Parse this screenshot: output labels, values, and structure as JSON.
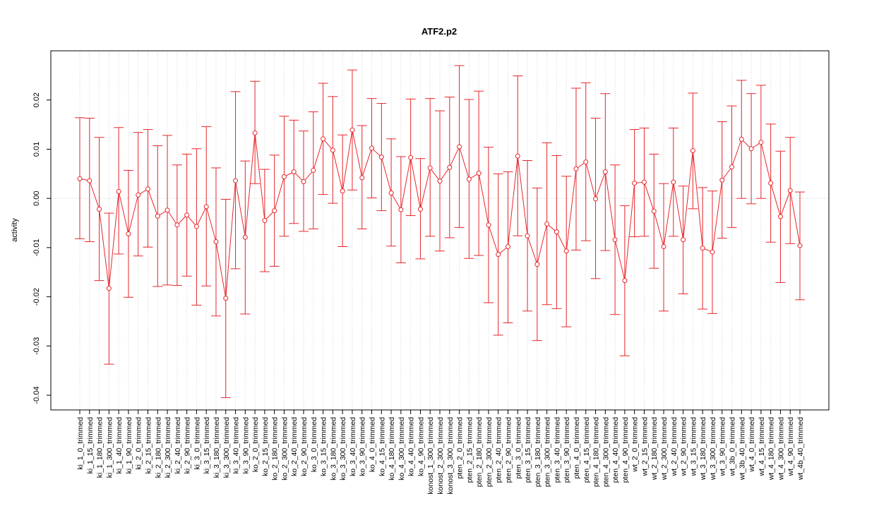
{
  "chart_data": {
    "type": "line",
    "title": "ATF2.p2",
    "xlabel": "",
    "ylabel": "activity",
    "ylim": [
      -0.043,
      0.03
    ],
    "yticks": [
      -0.04,
      -0.03,
      -0.02,
      -0.01,
      0.0,
      0.01,
      0.02
    ],
    "ytick_labels": [
      "-0.04",
      "-0.03",
      "-0.02",
      "-0.01",
      "0.00",
      "0.01",
      "0.02"
    ],
    "grid": true,
    "reference_line": 0,
    "colors": {
      "series": "#e8262b",
      "grid": "#d3d3d3",
      "axis": "#000000"
    },
    "categories": [
      "ki_1_0_trimmed",
      "ki_1_15_trimmed",
      "ki_1_180_trimmed",
      "ki_1_300_trimmed",
      "ki_1_40_trimmed",
      "ki_1_90_trimmed",
      "ki_2_0_trimmed",
      "ki_2_15_trimmed",
      "ki_2_180_trimmed",
      "ki_2_300_trimmed",
      "ki_2_40_trimmed",
      "ki_2_90_trimmed",
      "ki_3_0_trimmed",
      "ki_3_15_trimmed",
      "ki_3_180_trimmed",
      "ki_3_300_trimmed",
      "ki_3_40_trimmed",
      "ki_3_90_trimmed",
      "ko_2_0_trimmed",
      "ko_2_15_trimmed",
      "ko_2_180_trimmed",
      "ko_2_300_trimmed",
      "ko_2_40_trimmed",
      "ko_2_90_trimmed",
      "ko_3_0_trimmed",
      "ko_3_15_trimmed",
      "ko_3_180_trimmed",
      "ko_3_300_trimmed",
      "ko_3_40_trimmed",
      "ko_3_90_trimmed",
      "ko_4_0_trimmed",
      "ko_4_15_trimmed",
      "ko_4_180_trimmed",
      "ko_4_300_trimmed",
      "ko_4_40_trimmed",
      "ko_4_90_trimmed",
      "konost_1_300_trimmed",
      "konost_2_300_trimmed",
      "konost_3_300_trimmed",
      "pten_2_0_trimmed",
      "pten_2_15_trimmed",
      "pten_2_180_trimmed",
      "pten_2_300_trimmed",
      "pten_2_40_trimmed",
      "pten_2_90_trimmed",
      "pten_3_0_trimmed",
      "pten_3_15_trimmed",
      "pten_3_180_trimmed",
      "pten_3_300_trimmed",
      "pten_3_40_trimmed",
      "pten_3_90_trimmed",
      "pten_4_0_trimmed",
      "pten_4_15_trimmed",
      "pten_4_180_trimmed",
      "pten_4_300_trimmed",
      "pten_4_40_trimmed",
      "pten_4_90_trimmed",
      "wt_2_0_trimmed",
      "wt_2_15_trimmed",
      "wt_2_180_trimmed",
      "wt_2_300_trimmed",
      "wt_2_40_trimmed",
      "wt_2_90_trimmed",
      "wt_3_15_trimmed",
      "wt_3_180_trimmed",
      "wt_3_300_trimmed",
      "wt_3_90_trimmed",
      "wt_3b_0_trimmed",
      "wt_3b_40_trimmed",
      "wt_4_0_trimmed",
      "wt_4_15_trimmed",
      "wt_4_180_trimmed",
      "wt_4_300_trimmed",
      "wt_4_90_trimmed",
      "wt_4b_40_trimmed"
    ],
    "series": [
      {
        "values": [
          0.004,
          0.0036,
          -0.0022,
          -0.0183,
          0.0014,
          -0.0072,
          0.0007,
          0.0019,
          -0.0036,
          -0.0024,
          -0.0054,
          -0.0034,
          -0.0057,
          -0.0017,
          -0.0088,
          -0.0203,
          0.0036,
          -0.0079,
          0.0133,
          -0.0045,
          -0.0025,
          0.0044,
          0.0054,
          0.0034,
          0.0057,
          0.0121,
          0.0098,
          0.0015,
          0.0139,
          0.0042,
          0.0102,
          0.0084,
          0.0011,
          -0.0023,
          0.0083,
          -0.0022,
          0.0062,
          0.0035,
          0.0063,
          0.0105,
          0.0039,
          0.0051,
          -0.0054,
          -0.0114,
          -0.0098,
          0.0086,
          -0.0076,
          -0.0134,
          -0.0052,
          -0.0068,
          -0.0107,
          0.006,
          0.0074,
          -0.0001,
          0.0054,
          -0.0084,
          -0.0167,
          0.0031,
          0.0033,
          -0.0026,
          -0.0098,
          0.0033,
          -0.0084,
          0.0097,
          -0.0101,
          -0.0109,
          0.0037,
          0.0064,
          0.012,
          0.0101,
          0.0114,
          0.0031,
          -0.0037,
          0.0016,
          -0.0096
        ],
        "lower": [
          -0.0082,
          -0.0088,
          -0.0167,
          -0.0337,
          -0.0113,
          -0.0201,
          -0.0117,
          -0.0099,
          -0.0179,
          -0.0176,
          -0.0177,
          -0.0158,
          -0.0217,
          -0.0178,
          -0.0239,
          -0.0405,
          -0.0143,
          -0.0235,
          0.003,
          -0.0149,
          -0.0138,
          -0.0077,
          -0.0051,
          -0.0067,
          -0.0062,
          0.0008,
          -0.001,
          -0.0098,
          0.0017,
          -0.0062,
          0.0001,
          -0.0025,
          -0.0097,
          -0.0131,
          -0.0035,
          -0.0123,
          -0.0077,
          -0.0107,
          -0.008,
          -0.0059,
          -0.0122,
          -0.0116,
          -0.0212,
          -0.0278,
          -0.0253,
          -0.0076,
          -0.0229,
          -0.0289,
          -0.0216,
          -0.0224,
          -0.0261,
          -0.0105,
          -0.0086,
          -0.0163,
          -0.0106,
          -0.0236,
          -0.032,
          -0.0078,
          -0.0077,
          -0.0142,
          -0.0229,
          -0.0077,
          -0.0194,
          -0.0021,
          -0.0225,
          -0.0234,
          -0.0081,
          -0.0059,
          0.0,
          -0.0011,
          0.0,
          -0.0089,
          -0.0171,
          -0.0092,
          -0.0206
        ],
        "upper": [
          0.0164,
          0.0163,
          0.0124,
          -0.003,
          0.0144,
          0.0057,
          0.0134,
          0.014,
          0.0107,
          0.0128,
          0.0068,
          0.009,
          0.0101,
          0.0146,
          0.0062,
          -0.0002,
          0.0217,
          0.0076,
          0.0238,
          0.0059,
          0.0088,
          0.0167,
          0.0159,
          0.0137,
          0.0176,
          0.0234,
          0.0207,
          0.0129,
          0.0261,
          0.0148,
          0.0203,
          0.0193,
          0.0121,
          0.0085,
          0.0202,
          0.0081,
          0.0203,
          0.0178,
          0.0206,
          0.027,
          0.0201,
          0.0218,
          0.0104,
          0.005,
          0.0054,
          0.0249,
          0.0077,
          0.0021,
          0.0113,
          0.0087,
          0.0045,
          0.0224,
          0.0235,
          0.0163,
          0.0213,
          0.0068,
          -0.0015,
          0.014,
          0.0143,
          0.009,
          0.003,
          0.0143,
          0.0025,
          0.0214,
          0.0022,
          0.0015,
          0.0156,
          0.0188,
          0.024,
          0.0213,
          0.023,
          0.0151,
          0.0096,
          0.0124,
          0.0013
        ]
      }
    ]
  }
}
